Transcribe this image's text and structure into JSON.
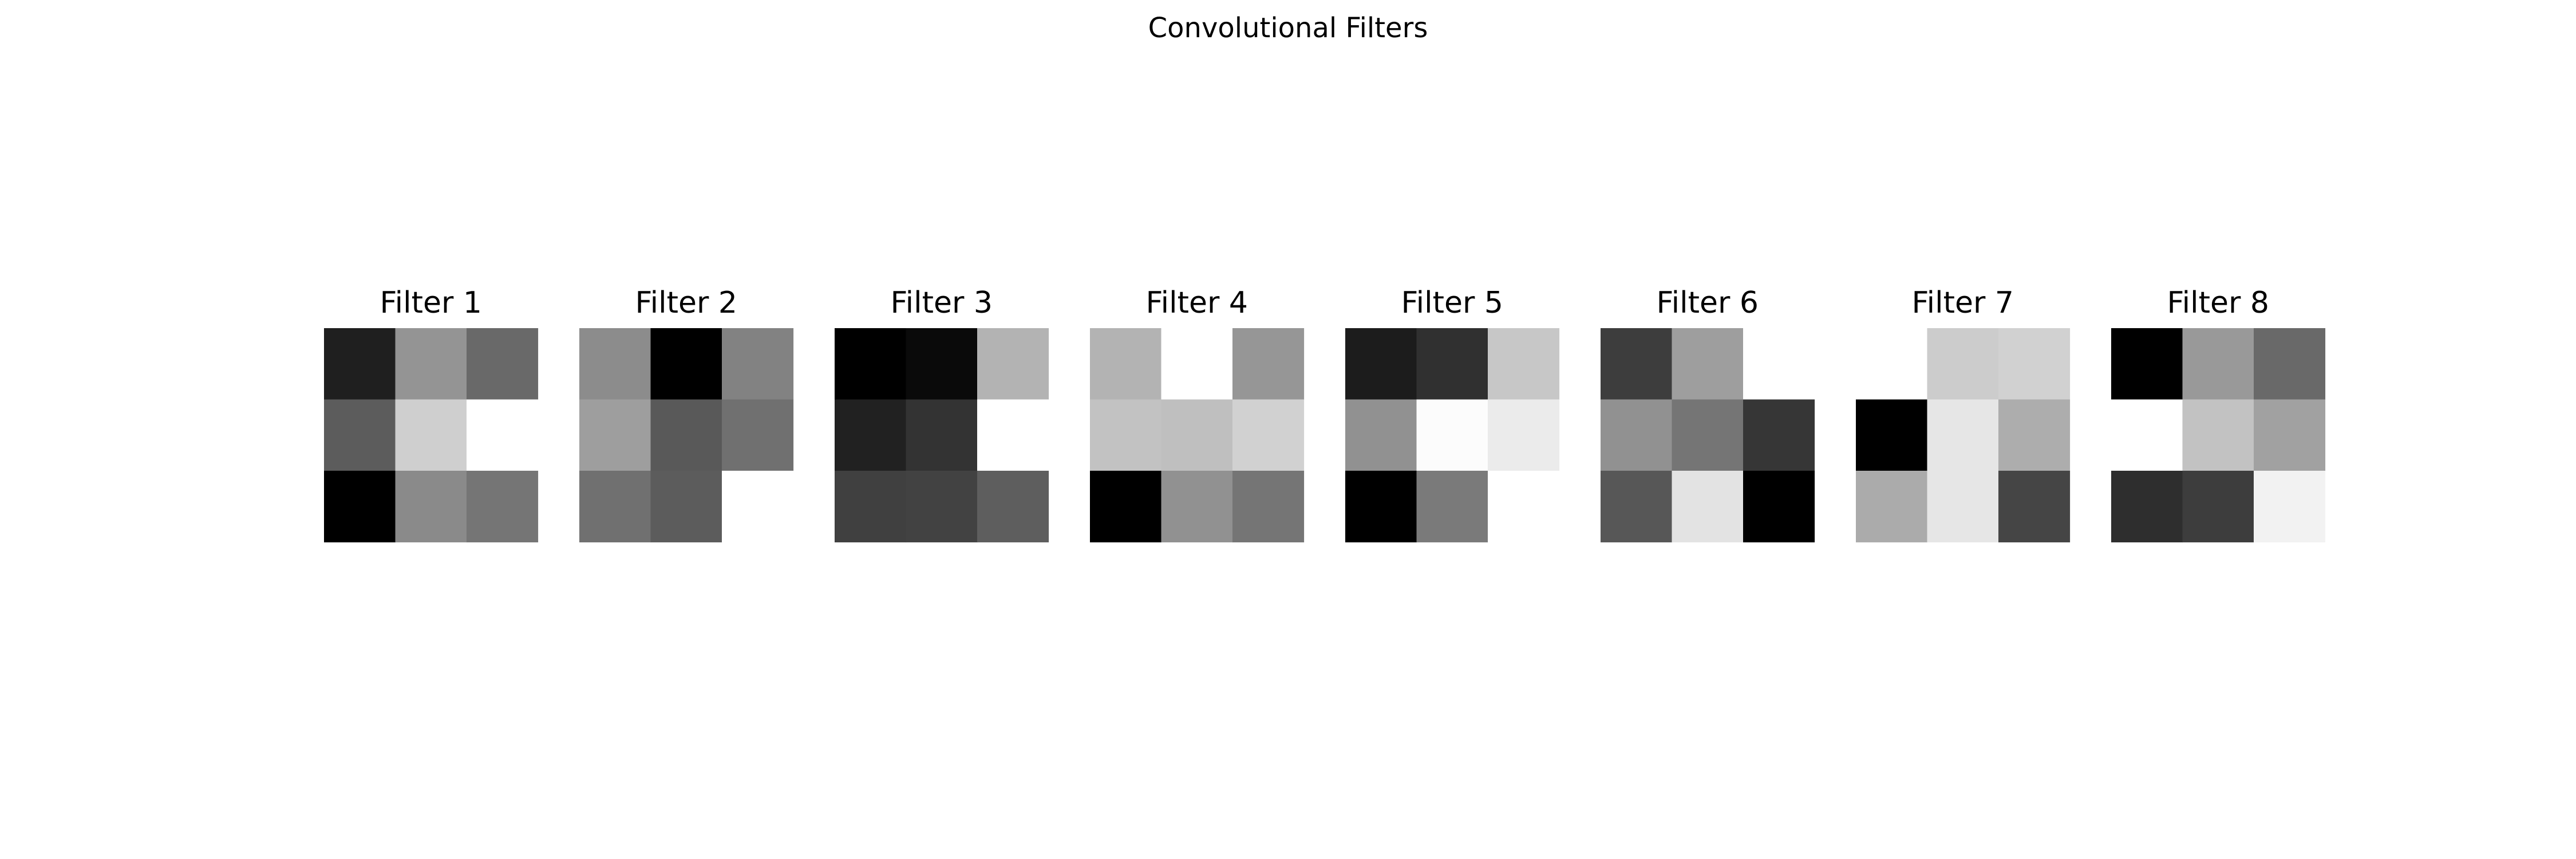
{
  "chart_data": {
    "type": "heatmap",
    "title": "Convolutional Filters",
    "colormap": "gray",
    "grid": false,
    "axes_visible": false,
    "panels": [
      {
        "title": "Filter 1",
        "values": [
          [
            0.12,
            0.58,
            0.41
          ],
          [
            0.36,
            0.81,
            1.0
          ],
          [
            0.0,
            0.54,
            0.46
          ]
        ]
      },
      {
        "title": "Filter 2",
        "values": [
          [
            0.55,
            0.0,
            0.51
          ],
          [
            0.62,
            0.35,
            0.44
          ],
          [
            0.44,
            0.36,
            1.0
          ]
        ]
      },
      {
        "title": "Filter 3",
        "values": [
          [
            0.0,
            0.04,
            0.7
          ],
          [
            0.13,
            0.2,
            1.0
          ],
          [
            0.25,
            0.26,
            0.37
          ]
        ]
      },
      {
        "title": "Filter 4",
        "values": [
          [
            0.7,
            1.0,
            0.59
          ],
          [
            0.76,
            0.75,
            0.82
          ],
          [
            0.0,
            0.57,
            0.46
          ]
        ]
      },
      {
        "title": "Filter 5",
        "values": [
          [
            0.11,
            0.19,
            0.78
          ],
          [
            0.57,
            0.99,
            0.92
          ],
          [
            0.0,
            0.48,
            1.0
          ]
        ]
      },
      {
        "title": "Filter 6",
        "values": [
          [
            0.24,
            0.62,
            1.0
          ],
          [
            0.57,
            0.46,
            0.21
          ],
          [
            0.34,
            0.89,
            0.0
          ]
        ]
      },
      {
        "title": "Filter 7",
        "values": [
          [
            1.0,
            0.8,
            0.82
          ],
          [
            0.0,
            0.9,
            0.68
          ],
          [
            0.67,
            0.9,
            0.27
          ]
        ]
      },
      {
        "title": "Filter 8",
        "values": [
          [
            0.0,
            0.6,
            0.41
          ],
          [
            1.0,
            0.76,
            0.63
          ],
          [
            0.18,
            0.24,
            0.95
          ]
        ]
      }
    ]
  }
}
